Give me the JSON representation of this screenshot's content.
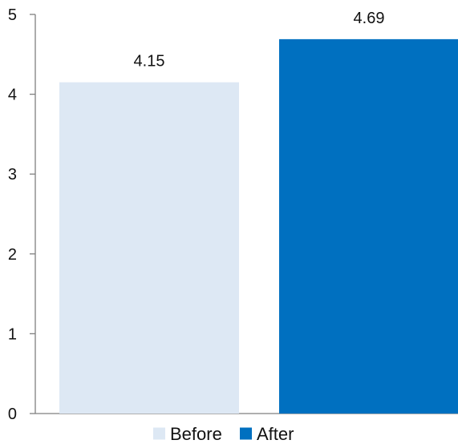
{
  "chart_data": {
    "type": "bar",
    "categories": [
      "Before",
      "After"
    ],
    "values": [
      4.15,
      4.69
    ],
    "data_labels": [
      "4.15",
      "4.69"
    ],
    "colors": [
      "#dde8f4",
      "#0070c0"
    ],
    "ylim": [
      0,
      5
    ],
    "y_ticks": [
      "0",
      "1",
      "2",
      "3",
      "4",
      "5"
    ],
    "title": "",
    "xlabel": "",
    "ylabel": "",
    "grid": false,
    "legend": {
      "position": "bottom",
      "entries": [
        {
          "label": "Before",
          "color": "#dde8f4"
        },
        {
          "label": "After",
          "color": "#0070c0"
        }
      ]
    },
    "axis_color": "#7f7f7f"
  }
}
